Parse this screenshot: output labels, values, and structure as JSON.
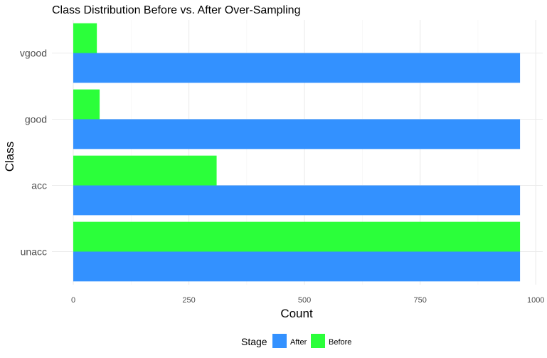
{
  "chart_data": {
    "type": "bar",
    "orientation": "horizontal",
    "title": "Class Distribution Before vs. After Over-Sampling",
    "xlabel": "Count",
    "ylabel": "Class",
    "categories": [
      "unacc",
      "acc",
      "good",
      "vgood"
    ],
    "series": [
      {
        "name": "After",
        "values": [
          966,
          966,
          966,
          966
        ],
        "color": "#3391ff"
      },
      {
        "name": "Before",
        "values": [
          966,
          310,
          57,
          51
        ],
        "color": "#2bff3a"
      }
    ],
    "xlim": [
      0,
      1000
    ],
    "xticks": [
      0,
      250,
      500,
      750,
      1000
    ],
    "xtick_labels": [
      "0",
      "250",
      "500",
      "750",
      "1000"
    ],
    "grid": true,
    "legend": {
      "title": "Stage",
      "position": "bottom",
      "entries": [
        "After",
        "Before"
      ]
    }
  }
}
